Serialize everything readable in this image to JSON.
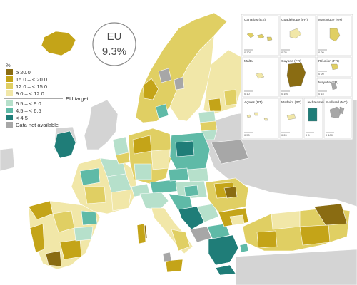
{
  "badge": {
    "label": "EU",
    "value": "9.3%"
  },
  "legend": {
    "unit": "%",
    "items": [
      {
        "label": "≥ 20.0",
        "color": "#8a6c12"
      },
      {
        "label": "15.0 – < 20.0",
        "color": "#c4a418"
      },
      {
        "label": "12.0 – < 15.0",
        "color": "#e0cf63"
      },
      {
        "label": "9.0 – < 12.0",
        "color": "#f1e7a8"
      },
      {
        "label": "6.5 – < 9.0",
        "color": "#b6e0cb"
      },
      {
        "label": "4.5 – < 6.5",
        "color": "#5fbaa7"
      },
      {
        "label": "< 4.5",
        "color": "#1f7d78"
      },
      {
        "label": "Data not available",
        "color": "#a7a7a7"
      }
    ],
    "target_label": "EU target"
  },
  "insets": [
    {
      "name": "Canarias (ES)",
      "scale": "0  100"
    },
    {
      "name": "Guadeloupe (FR)",
      "scale": "0  25"
    },
    {
      "name": "Martinique (FR)",
      "scale": "0  20"
    },
    {
      "name": "Réunion (FR)",
      "scale": "0  20"
    },
    {
      "name": "Malta",
      "scale": "0  10"
    },
    {
      "name": "Guyane (FR)",
      "scale": "0  100"
    },
    {
      "name": "Mayotte (FR)",
      "scale": "0  15"
    },
    {
      "name": "Açores (PT)",
      "scale": "0  50"
    },
    {
      "name": "Madeira (PT)",
      "scale": "0  20"
    },
    {
      "name": "Liechtenstein",
      "scale": "0  5"
    },
    {
      "name": "Svalbard (NO)",
      "scale": "0  100"
    }
  ],
  "colors": {
    "sea": "#ffffff",
    "non_eu_land": "#d4d4d4",
    "border": "#ffffff"
  }
}
